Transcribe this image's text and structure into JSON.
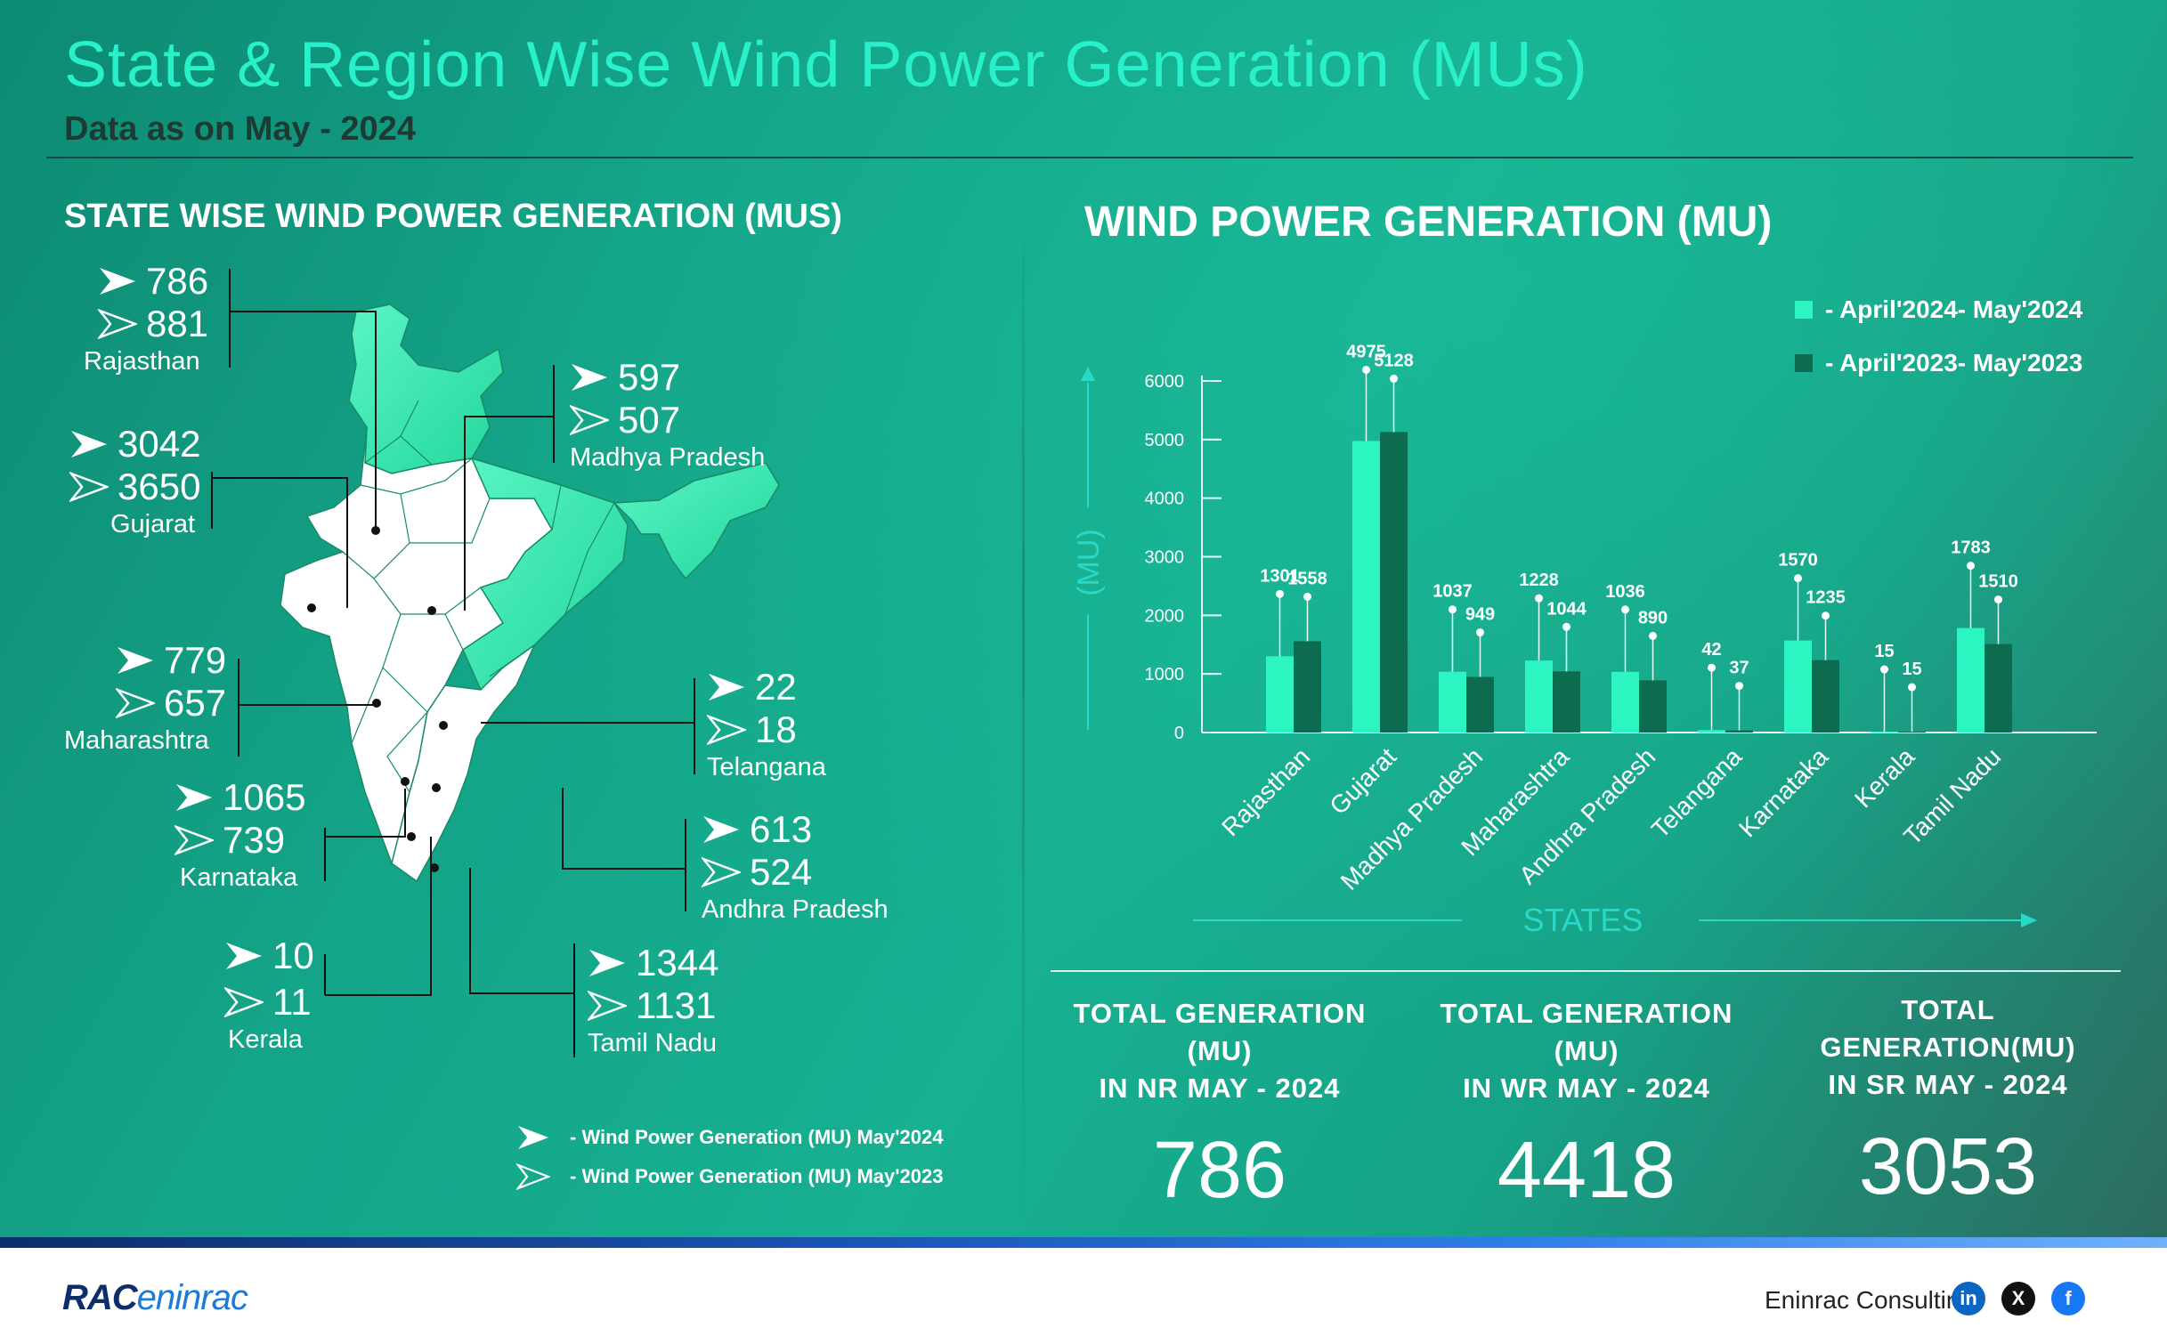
{
  "title": "State & Region Wise Wind Power Generation (MUs)",
  "subtitle": "Data as on May - 2024",
  "left_heading": "STATE WISE WIND POWER GENERATION (MUS)",
  "right_heading": "WIND POWER GENERATION (MU)",
  "states": [
    {
      "name": "Rajasthan",
      "may2024": "786",
      "may2023": "881"
    },
    {
      "name": "Gujarat",
      "may2024": "3042",
      "may2023": "3650"
    },
    {
      "name": "Maharashtra",
      "may2024": "779",
      "may2023": "657"
    },
    {
      "name": "Karnataka",
      "may2024": "1065",
      "may2023": "739"
    },
    {
      "name": "Kerala",
      "may2024": "10",
      "may2023": "11"
    },
    {
      "name": "Madhya Pradesh",
      "may2024": "597",
      "may2023": "507"
    },
    {
      "name": "Telangana",
      "may2024": "22",
      "may2023": "18"
    },
    {
      "name": "Andhra Pradesh",
      "may2024": "613",
      "may2023": "524"
    },
    {
      "name": "Tamil Nadu",
      "may2024": "1344",
      "may2023": "1131"
    }
  ],
  "map_legend": {
    "current": "-  Wind Power Generation (MU) May'2024",
    "previous": "-  Wind Power Generation (MU) May'2023"
  },
  "colors": {
    "bar_current": "#2cf5c2",
    "bar_previous": "#0d6b4f",
    "map_highlight": "#3ef0b8",
    "map_land": "#ffffff",
    "title": "#28f0c8"
  },
  "chart_data": {
    "type": "bar",
    "categories": [
      "Rajasthan",
      "Gujarat",
      "Madhya Pradesh",
      "Maharashtra",
      "Andhra Pradesh",
      "Telangana",
      "Karnataka",
      "Kerala",
      "Tamil Nadu"
    ],
    "series": [
      {
        "name": "- April'2024- May'2024",
        "values": [
          1301,
          4975,
          1037,
          1228,
          1036,
          42,
          1570,
          15,
          1783
        ]
      },
      {
        "name": "- April'2023- May'2023",
        "values": [
          1558,
          5128,
          949,
          1044,
          890,
          37,
          1235,
          15,
          1510
        ]
      }
    ],
    "xlabel": "STATES",
    "ylabel": "(MU)",
    "ylim": [
      0,
      6000
    ],
    "yticks": [
      "0",
      "1000",
      "2000",
      "3000",
      "4000",
      "5000",
      "6000"
    ],
    "legend": "top-right",
    "grid": false
  },
  "totals": [
    {
      "line1": "TOTAL  GENERATION (MU)",
      "line2": "IN NR MAY - 2024",
      "value": "786"
    },
    {
      "line1": "TOTAL  GENERATION (MU)",
      "line2": "IN WR MAY - 2024",
      "value": "4418"
    },
    {
      "line1": "TOTAL  GENERATION(MU)",
      "line2": "IN SR MAY - 2024",
      "value": "3053"
    }
  ],
  "footer": {
    "logo_main": "RAC",
    "logo_sub": "eninrac",
    "company": "Eninrac Consulting",
    "social_icons": [
      "linkedin-icon",
      "x-icon",
      "facebook-icon"
    ],
    "linkedin": "in",
    "x": "X",
    "facebook": "f"
  }
}
